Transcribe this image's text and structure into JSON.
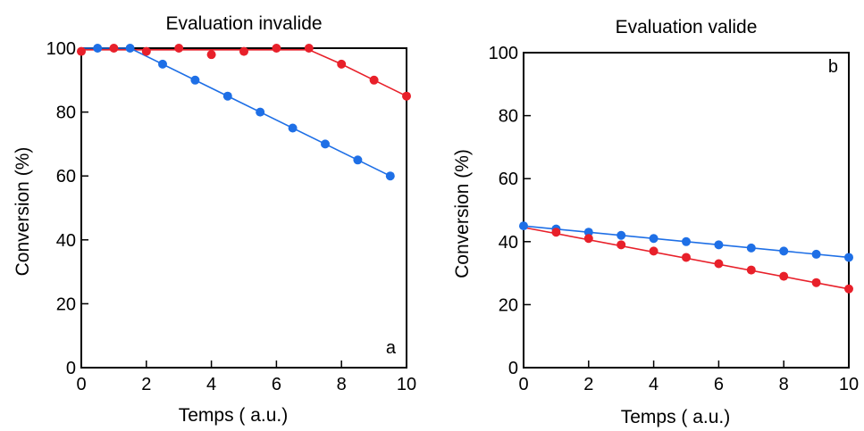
{
  "chart_data": [
    {
      "type": "line",
      "title": "Evaluation invalide",
      "xlabel": "Temps ( a.u.)",
      "ylabel": "Conversion (%)",
      "panel_letter": "a",
      "xlim": [
        0,
        10
      ],
      "ylim": [
        0,
        100
      ],
      "xticks": [
        0,
        2,
        4,
        6,
        8,
        10
      ],
      "yticks": [
        0,
        20,
        40,
        60,
        80,
        100
      ],
      "grid": false,
      "series": [
        {
          "color": "#e8202a",
          "points": [
            [
              0,
              99
            ],
            [
              1,
              100
            ],
            [
              2,
              99
            ],
            [
              3,
              100
            ],
            [
              4,
              98
            ],
            [
              5,
              99
            ],
            [
              6,
              100
            ],
            [
              7,
              100
            ],
            [
              8,
              95
            ],
            [
              9,
              90
            ],
            [
              10,
              85
            ]
          ],
          "line": [
            [
              0,
              99.5
            ],
            [
              7,
              99.5
            ],
            [
              8,
              95
            ],
            [
              9,
              90
            ],
            [
              10,
              85
            ]
          ]
        },
        {
          "color": "#1e6fe6",
          "points": [
            [
              0.5,
              100
            ],
            [
              1.5,
              100
            ],
            [
              2.5,
              95
            ],
            [
              3.5,
              90
            ],
            [
              4.5,
              85
            ],
            [
              5.5,
              80
            ],
            [
              6.5,
              75
            ],
            [
              7.5,
              70
            ],
            [
              8.5,
              65
            ],
            [
              9.5,
              60
            ]
          ],
          "line": [
            [
              0,
              100
            ],
            [
              1.5,
              100
            ],
            [
              9.5,
              60
            ]
          ]
        }
      ]
    },
    {
      "type": "line",
      "title": "Evaluation valide",
      "xlabel": "Temps ( a.u.)",
      "ylabel": "Conversion (%)",
      "panel_letter": "b",
      "xlim": [
        0,
        10
      ],
      "ylim": [
        0,
        100
      ],
      "xticks": [
        0,
        2,
        4,
        6,
        8,
        10
      ],
      "yticks": [
        0,
        20,
        40,
        60,
        80,
        100
      ],
      "grid": false,
      "series": [
        {
          "color": "#1e6fe6",
          "points": [
            [
              0,
              45
            ],
            [
              1,
              44
            ],
            [
              2,
              43
            ],
            [
              3,
              42
            ],
            [
              4,
              41
            ],
            [
              5,
              40
            ],
            [
              6,
              39
            ],
            [
              7,
              38
            ],
            [
              8,
              37
            ],
            [
              9,
              36
            ],
            [
              10,
              35
            ]
          ],
          "line": [
            [
              0,
              45
            ],
            [
              10,
              35
            ]
          ]
        },
        {
          "color": "#e8202a",
          "points": [
            [
              1,
              43
            ],
            [
              2,
              41
            ],
            [
              3,
              39
            ],
            [
              4,
              37
            ],
            [
              5,
              35
            ],
            [
              6,
              33
            ],
            [
              7,
              31
            ],
            [
              8,
              29
            ],
            [
              9,
              27
            ],
            [
              10,
              25
            ]
          ],
          "line": [
            [
              0,
              44.5
            ],
            [
              10,
              25
            ]
          ]
        }
      ]
    }
  ]
}
